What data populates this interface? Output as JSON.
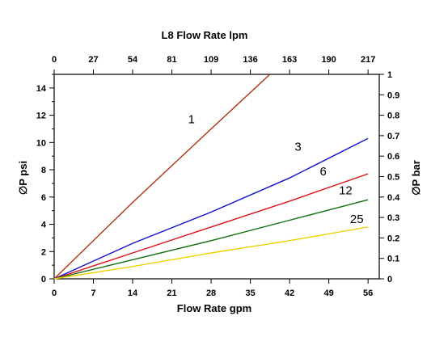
{
  "chart_data": {
    "type": "line",
    "title": "L8  Flow Rate lpm",
    "xlabel": "Flow Rate gpm",
    "ylabel": "∅P psi",
    "ylabel_right": "∅P bar",
    "xlim": [
      0,
      58
    ],
    "ylim": [
      0,
      15
    ],
    "ylim_right": [
      0,
      1
    ],
    "x_ticks": [
      0,
      7,
      14,
      21,
      28,
      35,
      42,
      49,
      56
    ],
    "x_tick_labels": [
      "0",
      "7",
      "14",
      "21",
      "28",
      "35",
      "42",
      "49",
      "56"
    ],
    "top_ticks": [
      0,
      27,
      54,
      81,
      109,
      136,
      163,
      190,
      217
    ],
    "y_ticks": [
      0,
      2,
      4,
      6,
      8,
      10,
      12,
      14
    ],
    "y_right_ticks": [
      "0",
      "0.1",
      "0.2",
      "0.3",
      "0.4",
      "0.5",
      "0.6",
      "0.7",
      "0.8",
      "0.9",
      "1"
    ],
    "grid": false,
    "legend": "none",
    "series": [
      {
        "name": "1",
        "color": "#b03010",
        "x": [
          0,
          14,
          28,
          38.5
        ],
        "y": [
          0,
          5.6,
          11,
          15
        ],
        "label_at": [
          24.5,
          11.4
        ]
      },
      {
        "name": "3",
        "color": "#1010d0",
        "x": [
          0,
          14,
          28,
          42,
          56
        ],
        "y": [
          0,
          2.6,
          4.9,
          7.4,
          10.3
        ],
        "label_at": [
          43.5,
          9.4
        ]
      },
      {
        "name": "6",
        "color": "#e01010",
        "x": [
          0,
          14,
          28,
          42,
          56
        ],
        "y": [
          0,
          1.9,
          3.8,
          5.7,
          7.7
        ],
        "label_at": [
          48,
          7.6
        ]
      },
      {
        "name": "12",
        "color": "#107010",
        "x": [
          0,
          14,
          28,
          42,
          56
        ],
        "y": [
          0,
          1.4,
          2.8,
          4.3,
          5.8
        ],
        "label_at": [
          52,
          6.2
        ]
      },
      {
        "name": "25",
        "color": "#f0d000",
        "x": [
          0,
          14,
          28,
          42,
          56
        ],
        "y": [
          0,
          0.9,
          1.9,
          2.8,
          3.8
        ],
        "label_at": [
          54,
          4.1
        ]
      }
    ]
  }
}
